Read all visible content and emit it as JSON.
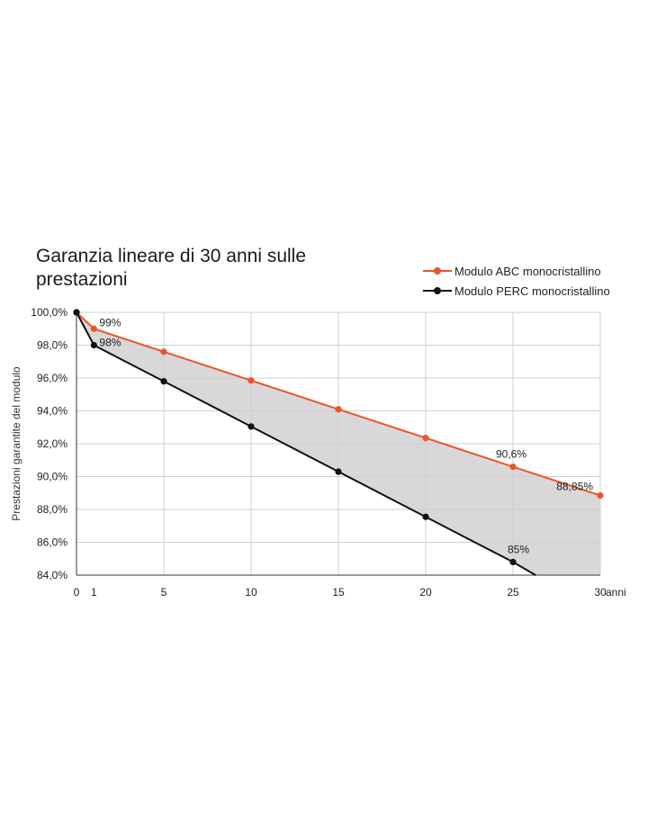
{
  "chart_data": {
    "type": "line",
    "title": "Garanzia lineare di 30 anni sulle prestazioni",
    "ylabel": "Prestazioni garantite del modulo",
    "xlabel": "anni",
    "xlim": [
      0,
      30
    ],
    "ylim": [
      84,
      100
    ],
    "x_ticks": [
      "0",
      "1",
      "5",
      "10",
      "15",
      "20",
      "25",
      "30"
    ],
    "y_ticks": [
      "84,0%",
      "86,0%",
      "88,0%",
      "90,0%",
      "92,0%",
      "94,0%",
      "96,0%",
      "98,0%",
      "100,0%"
    ],
    "grid": true,
    "legend_position": "top-right",
    "series": [
      {
        "name": "Modulo ABC monocristallino",
        "color": "#e8562a",
        "x": [
          0,
          1,
          5,
          10,
          15,
          20,
          25,
          30
        ],
        "y": [
          100,
          99,
          97.6,
          95.85,
          94.1,
          92.35,
          90.6,
          88.85
        ]
      },
      {
        "name": "Modulo PERC monocristallino",
        "color": "#111111",
        "x": [
          0,
          1,
          5,
          10,
          15,
          20,
          25,
          26.3
        ],
        "y": [
          100,
          98,
          95.8,
          93.05,
          90.3,
          87.55,
          84.8,
          84
        ]
      }
    ],
    "annotations": [
      {
        "text": "99%",
        "series": 0,
        "index": 1
      },
      {
        "text": "98%",
        "series": 1,
        "index": 1
      },
      {
        "text": "90,6%",
        "series": 0,
        "index": 6
      },
      {
        "text": "88,85%",
        "series": 0,
        "index": 7
      },
      {
        "text": "85%",
        "series": 1,
        "index": 6
      }
    ]
  }
}
